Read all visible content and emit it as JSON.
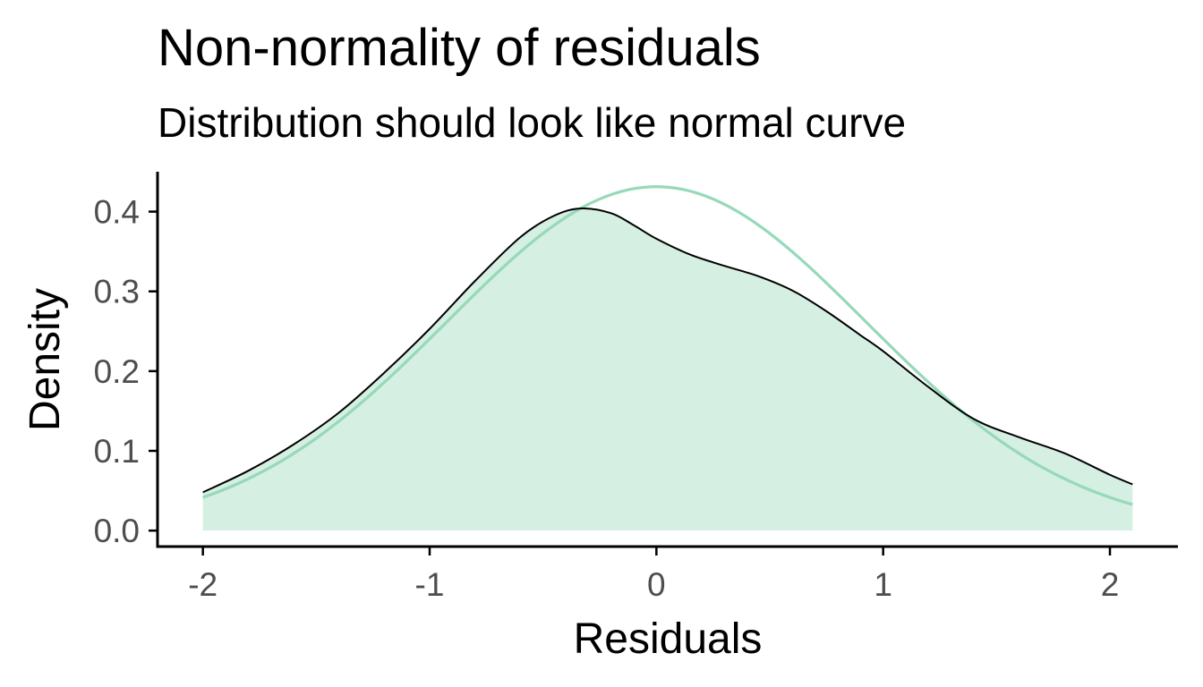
{
  "chart_data": {
    "type": "area",
    "title": "Non-normality of residuals",
    "subtitle": "Distribution should look like normal curve",
    "xlabel": "Residuals",
    "ylabel": "Density",
    "xlim": [
      -2.2,
      2.3
    ],
    "ylim": [
      -0.02,
      0.45
    ],
    "x_ticks": [
      -2,
      -1,
      0,
      1,
      2
    ],
    "x_tick_labels": [
      "-2",
      "-1",
      "0",
      "1",
      "2"
    ],
    "y_ticks": [
      0.0,
      0.1,
      0.2,
      0.3,
      0.4
    ],
    "y_tick_labels": [
      "0.0",
      "0.1",
      "0.2",
      "0.3",
      "0.4"
    ],
    "grid": false,
    "legend": "none",
    "colors": {
      "density_fill": "#d5efe2",
      "density_line": "#000000",
      "normal_curve": "#96d9b9",
      "axis": "#000000",
      "tick_label": "#4d4d4d"
    },
    "series": [
      {
        "kind": "density-area",
        "x": [
          -2.0,
          -1.8,
          -1.6,
          -1.4,
          -1.2,
          -1.0,
          -0.8,
          -0.6,
          -0.45,
          -0.33,
          -0.2,
          -0.1,
          0.0,
          0.15,
          0.3,
          0.45,
          0.6,
          0.75,
          0.9,
          1.0,
          1.2,
          1.4,
          1.6,
          1.8,
          2.0,
          2.1
        ],
        "y": [
          0.048,
          0.075,
          0.108,
          0.148,
          0.198,
          0.253,
          0.313,
          0.368,
          0.395,
          0.404,
          0.398,
          0.383,
          0.366,
          0.346,
          0.332,
          0.319,
          0.301,
          0.275,
          0.245,
          0.225,
          0.18,
          0.14,
          0.117,
          0.097,
          0.07,
          0.058
        ]
      },
      {
        "kind": "normal-curve",
        "mean": 0.0,
        "sd": 0.925,
        "x_range": [
          -2.0,
          2.1
        ]
      }
    ]
  }
}
